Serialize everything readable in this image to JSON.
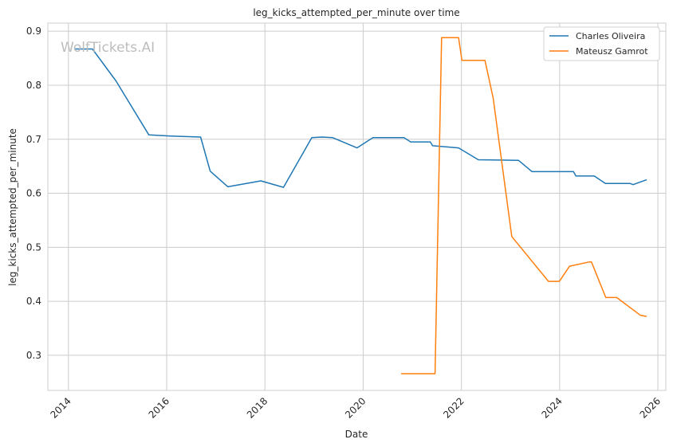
{
  "chart_data": {
    "type": "line",
    "title": "leg_kicks_attempted_per_minute over time",
    "xlabel": "Date",
    "ylabel": "leg_kicks_attempted_per_minute",
    "watermark": "WolfTickets.AI",
    "x_ticks": [
      "2014",
      "2016",
      "2018",
      "2020",
      "2022",
      "2024",
      "2026"
    ],
    "y_ticks": [
      "0.3",
      "0.4",
      "0.5",
      "0.6",
      "0.7",
      "0.8",
      "0.9"
    ],
    "xlim": [
      "2013-08-01",
      "2026-03-01"
    ],
    "ylim": [
      0.235,
      0.915
    ],
    "grid": true,
    "legend_position": "top-right",
    "series": [
      {
        "name": "Charles Oliveira",
        "color": "#1f77b4",
        "points": [
          [
            "2014-02-15",
            0.867
          ],
          [
            "2014-06-28",
            0.867
          ],
          [
            "2014-12-20",
            0.808
          ],
          [
            "2015-08-22",
            0.708
          ],
          [
            "2016-01-30",
            0.706
          ],
          [
            "2016-09-10",
            0.704
          ],
          [
            "2016-11-20",
            0.641
          ],
          [
            "2017-04-01",
            0.612
          ],
          [
            "2017-12-02",
            0.623
          ],
          [
            "2018-05-19",
            0.611
          ],
          [
            "2018-09-22",
            0.666
          ],
          [
            "2018-12-15",
            0.703
          ],
          [
            "2019-03-01",
            0.704
          ],
          [
            "2019-05-18",
            0.703
          ],
          [
            "2019-11-16",
            0.684
          ],
          [
            "2020-03-14",
            0.703
          ],
          [
            "2020-10-31",
            0.703
          ],
          [
            "2020-12-20",
            0.695
          ],
          [
            "2021-05-15",
            0.695
          ],
          [
            "2021-06-01",
            0.688
          ],
          [
            "2021-12-11",
            0.684
          ],
          [
            "2022-05-07",
            0.662
          ],
          [
            "2023-03-01",
            0.661
          ],
          [
            "2023-06-10",
            0.64
          ],
          [
            "2024-04-13",
            0.64
          ],
          [
            "2024-05-01",
            0.632
          ],
          [
            "2024-09-15",
            0.632
          ],
          [
            "2024-12-07",
            0.618
          ],
          [
            "2025-06-10",
            0.618
          ],
          [
            "2025-07-01",
            0.616
          ],
          [
            "2025-10-10",
            0.625
          ]
        ]
      },
      {
        "name": "Mateusz Gamrot",
        "color": "#ff7f0e",
        "points": [
          [
            "2020-10-10",
            0.266
          ],
          [
            "2021-06-19",
            0.266
          ],
          [
            "2021-08-07",
            0.888
          ],
          [
            "2021-12-11",
            0.888
          ],
          [
            "2022-01-05",
            0.846
          ],
          [
            "2022-06-25",
            0.846
          ],
          [
            "2022-08-25",
            0.776
          ],
          [
            "2023-01-10",
            0.52
          ],
          [
            "2023-10-10",
            0.437
          ],
          [
            "2023-12-30",
            0.437
          ],
          [
            "2024-03-15",
            0.465
          ],
          [
            "2024-08-10",
            0.473
          ],
          [
            "2024-08-25",
            0.473
          ],
          [
            "2024-12-10",
            0.407
          ],
          [
            "2025-03-01",
            0.407
          ],
          [
            "2025-08-25",
            0.374
          ],
          [
            "2025-10-10",
            0.372
          ]
        ]
      }
    ]
  }
}
